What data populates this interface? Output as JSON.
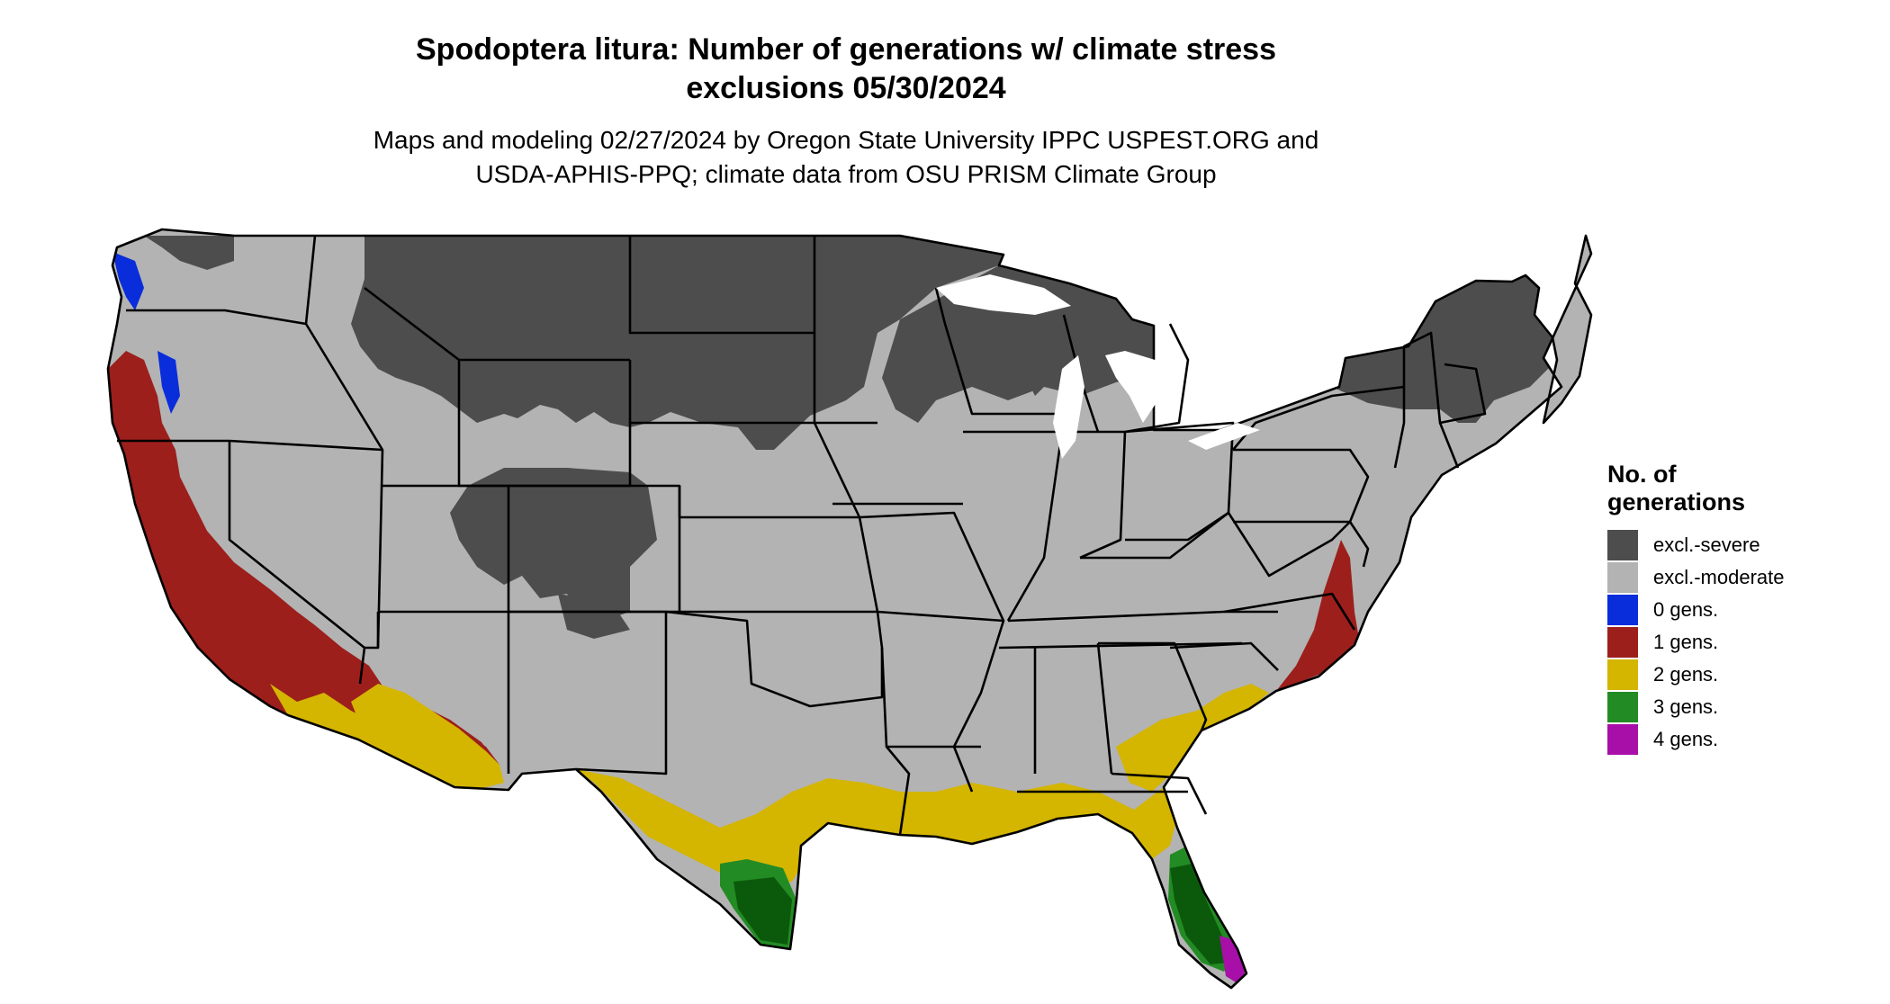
{
  "title_line1": "Spodoptera litura: Number of generations w/ climate stress",
  "title_line2": "exclusions 05/30/2024",
  "subtitle_line1": "Maps and modeling 02/27/2024 by Oregon State University IPPC USPEST.ORG and",
  "subtitle_line2": "USDA-APHIS-PPQ; climate data from OSU PRISM Climate Group",
  "legend": {
    "title_line1": "No. of",
    "title_line2": "generations",
    "items": [
      {
        "label": "excl.-severe",
        "color": "#4d4d4d"
      },
      {
        "label": "excl.-moderate",
        "color": "#b3b3b3"
      },
      {
        "label": "0 gens.",
        "color": "#0a2ddb"
      },
      {
        "label": "1 gens.",
        "color": "#9c1f1c"
      },
      {
        "label": "2 gens.",
        "color": "#d4b500"
      },
      {
        "label": "3 gens.",
        "color": "#238b24"
      },
      {
        "label": "4 gens.",
        "color": "#a80fa8"
      }
    ]
  },
  "colors": {
    "dark_green": "#0b5a0b",
    "light_green": "#7fd47f",
    "orange_red": "#e8421c",
    "state_border": "#000000"
  }
}
